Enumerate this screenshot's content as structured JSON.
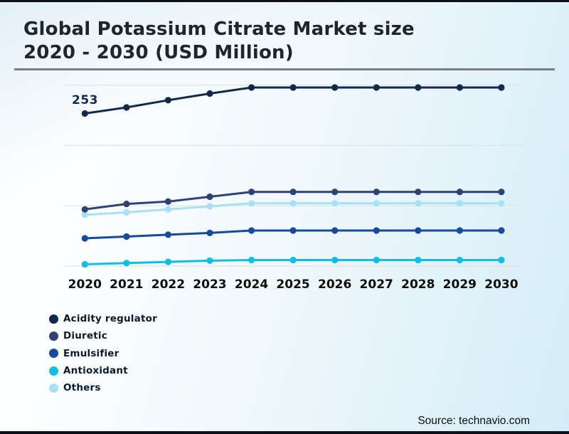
{
  "header": {
    "title_line1": "Global Potassium Citrate Market size",
    "title_line2": "2020 - 2030 (USD Million)"
  },
  "chart_data": {
    "type": "line",
    "title": "Global Potassium Citrate Market size 2020 - 2030 (USD Million)",
    "unit": "USD Million",
    "x": [
      2020,
      2021,
      2022,
      2023,
      2024,
      2025,
      2026,
      2027,
      2028,
      2029,
      2030
    ],
    "grid": "horizontal",
    "y_gridline_values": [
      0,
      100,
      200,
      300
    ],
    "legend_position": "bottom-left",
    "series": [
      {
        "name": "Acidity regulator",
        "color": "#13294a",
        "values": [
          253,
          263,
          275,
          286,
          296,
          296,
          296,
          296,
          296,
          296,
          296
        ]
      },
      {
        "name": "Diuretic",
        "color": "#2e4374",
        "values": [
          94,
          103,
          107,
          115,
          123,
          123,
          123,
          123,
          123,
          123,
          123
        ]
      },
      {
        "name": "Emulsifier",
        "color": "#17499c",
        "values": [
          46,
          49,
          52,
          55,
          59,
          59,
          59,
          59,
          59,
          59,
          59
        ]
      },
      {
        "name": "Antioxidant",
        "color": "#0dbfe6",
        "values": [
          3,
          5,
          7,
          9,
          10,
          10,
          10,
          10,
          10,
          10,
          10
        ]
      },
      {
        "name": "Others",
        "color": "#a7e1f3",
        "values": [
          85,
          89,
          94,
          99,
          104,
          104,
          104,
          104,
          104,
          104,
          104
        ]
      }
    ],
    "data_labels": [
      {
        "series": "Acidity regulator",
        "x": 2020,
        "text": "253"
      }
    ]
  },
  "footer": {
    "source": "Source: technavio.com"
  }
}
